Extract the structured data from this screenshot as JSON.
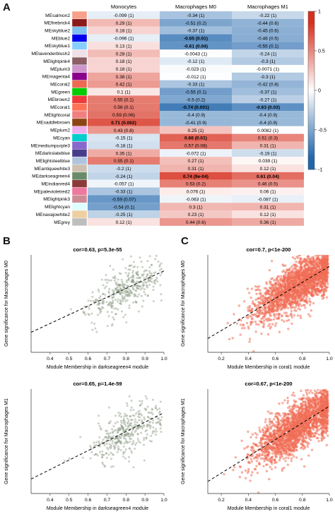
{
  "panels": {
    "a": "A",
    "b": "B",
    "c": "C"
  },
  "heatmap": {
    "type": "heatmap",
    "columns": [
      "Monocytes",
      "Macrophages M0",
      "Macrophages M1"
    ],
    "rows": [
      {
        "module": "MEsalmon2",
        "swatch": "#f7a08a",
        "cells": [
          {
            "r": -0.099,
            "label": "-0.099 (1)",
            "bold": false
          },
          {
            "r": -0.34,
            "label": "-0.34 (1)",
            "bold": false
          },
          {
            "r": -0.22,
            "label": "-0.22 (1)",
            "bold": false
          }
        ]
      },
      {
        "module": "MEfirebrick4",
        "swatch": "#8b1a1a",
        "cells": [
          {
            "r": 0.29,
            "label": "0.29 (1)",
            "bold": false
          },
          {
            "r": -0.51,
            "label": "-0.51 (0.2)",
            "bold": false
          },
          {
            "r": -0.44,
            "label": "-0.44 (0.6)",
            "bold": false
          }
        ]
      },
      {
        "module": "MEskyblue2",
        "swatch": "#7ec0ee",
        "cells": [
          {
            "r": 0.18,
            "label": "0.18 (1)",
            "bold": false
          },
          {
            "r": -0.37,
            "label": "-0.37 (1)",
            "bold": false
          },
          {
            "r": -0.45,
            "label": "-0.45 (0.6)",
            "bold": false
          }
        ]
      },
      {
        "module": "MEblue2",
        "swatch": "#0000ee",
        "cells": [
          {
            "r": -0.096,
            "label": "-0.096 (1)",
            "bold": false
          },
          {
            "r": -0.65,
            "label": "-0.65 (0.01)",
            "bold": true
          },
          {
            "r": -0.46,
            "label": "-0.46 (0.5)",
            "bold": false
          }
        ]
      },
      {
        "module": "MEskyblue1",
        "swatch": "#87ceff",
        "cells": [
          {
            "r": 0.13,
            "label": "0.13 (1)",
            "bold": false
          },
          {
            "r": -0.61,
            "label": "-0.61 (0.04)",
            "bold": true
          },
          {
            "r": -0.55,
            "label": "-0.55 (0.1)",
            "bold": false
          }
        ]
      },
      {
        "module": "MElavenderblush2",
        "swatch": "#eee0e5",
        "cells": [
          {
            "r": 0.28,
            "label": "0.28 (1)",
            "bold": false
          },
          {
            "r": -0.0043,
            "label": "-0.0043 (1)",
            "bold": false
          },
          {
            "r": -0.24,
            "label": "-0.24 (1)",
            "bold": false
          }
        ]
      },
      {
        "module": "MElightpink4",
        "swatch": "#8b5f65",
        "cells": [
          {
            "r": 0.18,
            "label": "0.18 (1)",
            "bold": false
          },
          {
            "r": -0.12,
            "label": "-0.12 (1)",
            "bold": false
          },
          {
            "r": -0.3,
            "label": "-0.3 (1)",
            "bold": false
          }
        ]
      },
      {
        "module": "MEplum3",
        "swatch": "#cd96cd",
        "cells": [
          {
            "r": 0.18,
            "label": "0.18 (1)",
            "bold": false
          },
          {
            "r": -0.023,
            "label": "-0.023 (1)",
            "bold": false
          },
          {
            "r": -0.0071,
            "label": "-0.0071 (1)",
            "bold": false
          }
        ]
      },
      {
        "module": "MEmagenta4",
        "swatch": "#8b008b",
        "cells": [
          {
            "r": 0.38,
            "label": "0.38 (1)",
            "bold": false
          },
          {
            "r": -0.012,
            "label": "-0.012 (1)",
            "bold": false
          },
          {
            "r": -0.3,
            "label": "-0.3 (1)",
            "bold": false
          }
        ]
      },
      {
        "module": "MEcoral2",
        "swatch": "#ee6a50",
        "cells": [
          {
            "r": 0.42,
            "label": "0.42 (1)",
            "bold": false
          },
          {
            "r": -0.33,
            "label": "-0.33 (1)",
            "bold": false
          },
          {
            "r": -0.42,
            "label": "-0.42 (0.8)",
            "bold": false
          }
        ]
      },
      {
        "module": "MEgreen",
        "swatch": "#00cd00",
        "cells": [
          {
            "r": 0.1,
            "label": "0.1 (1)",
            "bold": false
          },
          {
            "r": -0.55,
            "label": "-0.55 (0.1)",
            "bold": false
          },
          {
            "r": -0.37,
            "label": "-0.37 (1)",
            "bold": false
          }
        ]
      },
      {
        "module": "MEbrown2",
        "swatch": "#ee3b3b",
        "cells": [
          {
            "r": 0.55,
            "label": "0.55 (0.1)",
            "bold": false
          },
          {
            "r": -0.5,
            "label": "-0.5 (0.2)",
            "bold": false
          },
          {
            "r": -0.27,
            "label": "-0.27 (1)",
            "bold": false
          }
        ]
      },
      {
        "module": "MEcoral1",
        "swatch": "#ff7256",
        "cells": [
          {
            "r": 0.56,
            "label": "0.56 (0.1)",
            "bold": false
          },
          {
            "r": -0.74,
            "label": "-0.74 (0.001)",
            "bold": true
          },
          {
            "r": -0.63,
            "label": "-0.63 (0.03)",
            "bold": true
          }
        ]
      },
      {
        "module": "MElightcoral",
        "swatch": "#f08080",
        "cells": [
          {
            "r": 0.59,
            "label": "0.59 (0.06)",
            "bold": false
          },
          {
            "r": -0.4,
            "label": "-0.4 (0.9)",
            "bold": false
          },
          {
            "r": -0.4,
            "label": "-0.4 (0.9)",
            "bold": false
          }
        ]
      },
      {
        "module": "MEsaddlebrown",
        "swatch": "#8b4513",
        "cells": [
          {
            "r": 0.71,
            "label": "0.71 (0.002)",
            "bold": true
          },
          {
            "r": -0.41,
            "label": "-0.41 (0.9)",
            "bold": false
          },
          {
            "r": -0.4,
            "label": "-0.4 (0.9)",
            "bold": false
          }
        ]
      },
      {
        "module": "MEplum2",
        "swatch": "#eeaeee",
        "cells": [
          {
            "r": 0.43,
            "label": "0.43 (0.8)",
            "bold": false
          },
          {
            "r": 0.25,
            "label": "0.25 (1)",
            "bold": false
          },
          {
            "r": 0.0082,
            "label": "0.0082 (1)",
            "bold": false
          }
        ]
      },
      {
        "module": "MEcyan",
        "swatch": "#00cdcd",
        "cells": [
          {
            "r": -0.15,
            "label": "-0.15 (1)",
            "bold": false
          },
          {
            "r": 0.66,
            "label": "0.66 (0.01)",
            "bold": true
          },
          {
            "r": 0.51,
            "label": "0.51 (0.3)",
            "bold": false
          }
        ]
      },
      {
        "module": "MEmediumpurple3",
        "swatch": "#8968cd",
        "cells": [
          {
            "r": -0.18,
            "label": "-0.18 (1)",
            "bold": false
          },
          {
            "r": 0.57,
            "label": "0.57 (0.08)",
            "bold": false
          },
          {
            "r": 0.31,
            "label": "0.31 (1)",
            "bold": false
          }
        ]
      },
      {
        "module": "MEdarkslateblue",
        "swatch": "#483d8b",
        "cells": [
          {
            "r": 0.35,
            "label": "0.35 (1)",
            "bold": false
          },
          {
            "r": -0.072,
            "label": "-0.072 (1)",
            "bold": false
          },
          {
            "r": -0.19,
            "label": "-0.19 (1)",
            "bold": false
          }
        ]
      },
      {
        "module": "MElightsteelblue",
        "swatch": "#b0c4de",
        "cells": [
          {
            "r": 0.55,
            "label": "0.55 (0.1)",
            "bold": false
          },
          {
            "r": 0.27,
            "label": "0.27 (1)",
            "bold": false
          },
          {
            "r": 0.039,
            "label": "0.039 (1)",
            "bold": false
          }
        ]
      },
      {
        "module": "MEantiquewhite3",
        "swatch": "#cdc0b0",
        "cells": [
          {
            "r": -0.2,
            "label": "-0.2 (1)",
            "bold": false
          },
          {
            "r": 0.31,
            "label": "0.31 (1)",
            "bold": false
          },
          {
            "r": 0.12,
            "label": "0.12 (1)",
            "bold": false
          }
        ]
      },
      {
        "module": "MEdarkseagreen4",
        "swatch": "#698b69",
        "cells": [
          {
            "r": -0.24,
            "label": "-0.24 (1)",
            "bold": false
          },
          {
            "r": 0.74,
            "label": "0.74 (9e-04)",
            "bold": true
          },
          {
            "r": 0.61,
            "label": "0.61 (0.04)",
            "bold": true
          }
        ]
      },
      {
        "module": "MEindianred4",
        "swatch": "#8b3a3a",
        "cells": [
          {
            "r": -0.057,
            "label": "-0.057 (1)",
            "bold": false
          },
          {
            "r": 0.53,
            "label": "0.53 (0.2)",
            "bold": false
          },
          {
            "r": 0.46,
            "label": "0.46 (0.5)",
            "bold": false
          }
        ]
      },
      {
        "module": "MEpalevioletred2",
        "swatch": "#ee799f",
        "cells": [
          {
            "r": -0.33,
            "label": "-0.33 (1)",
            "bold": false
          },
          {
            "r": 0.076,
            "label": "0.076 (1)",
            "bold": false
          },
          {
            "r": 0.06,
            "label": "0.06 (1)",
            "bold": false
          }
        ]
      },
      {
        "module": "MElightpink3",
        "swatch": "#cd8c95",
        "cells": [
          {
            "r": -0.59,
            "label": "-0.59 (0.07)",
            "bold": false
          },
          {
            "r": -0.063,
            "label": "-0.063 (1)",
            "bold": false
          },
          {
            "r": -0.087,
            "label": "-0.087 (1)",
            "bold": false
          }
        ]
      },
      {
        "module": "MElightcyan",
        "swatch": "#e0ffff",
        "cells": [
          {
            "r": -0.54,
            "label": "-0.54 (0.1)",
            "bold": false
          },
          {
            "r": 0.3,
            "label": "0.3 (1)",
            "bold": false
          },
          {
            "r": 0.31,
            "label": "0.31 (1)",
            "bold": false
          }
        ]
      },
      {
        "module": "MEnavajowhite2",
        "swatch": "#eecfa1",
        "cells": [
          {
            "r": -0.25,
            "label": "-0.25 (1)",
            "bold": false
          },
          {
            "r": 0.23,
            "label": "0.23 (1)",
            "bold": false
          },
          {
            "r": 0.12,
            "label": "0.12 (1)",
            "bold": false
          }
        ]
      },
      {
        "module": "MEgrey",
        "swatch": "#bebebe",
        "cells": [
          {
            "r": 0.12,
            "label": "0.12 (1)",
            "bold": false
          },
          {
            "r": 0.44,
            "label": "0.44 (0.6)",
            "bold": false
          },
          {
            "r": 0.36,
            "label": "0.36 (1)",
            "bold": false
          }
        ]
      }
    ],
    "colorbar": {
      "ticks": [
        {
          "v": 1,
          "label": "1"
        },
        {
          "v": 0.5,
          "label": "0.5"
        },
        {
          "v": 0,
          "label": "0"
        },
        {
          "v": -0.5,
          "label": "-0.5"
        },
        {
          "v": -1,
          "label": "-1"
        }
      ],
      "high_color": "#d7301f",
      "mid_color": "#ffffff",
      "low_color": "#2166ac"
    }
  },
  "chart_data": [
    {
      "type": "scatter",
      "title": "cor=0.63, p=5.3e-55",
      "xlabel": "Module Membership in darkseagreen4 module",
      "ylabel": "Gene significance for Macrophages M0",
      "xlim": [
        0.3,
        1.0
      ],
      "ylim": [
        0.18,
        0.88
      ],
      "xticks": [
        "0.4",
        "0.5",
        "0.6",
        "0.7",
        "0.8",
        "0.9",
        "1.0"
      ],
      "fit": {
        "slope": 0.63,
        "intercept": 0.135
      },
      "point_color": "#8a9a80",
      "n": 380,
      "x_center": 0.8,
      "x_spread": 0.1,
      "noise": 0.08
    },
    {
      "type": "scatter",
      "title": "cor=0.65, p=1.4e-59",
      "xlabel": "Module Membership in darkseagreen4 module",
      "ylabel": "Gene significance for Macrophages M1",
      "xlim": [
        0.3,
        1.0
      ],
      "ylim": [
        0.1,
        0.85
      ],
      "xticks": [
        "0.4",
        "0.5",
        "0.6",
        "0.7",
        "0.8",
        "0.9",
        "1.0"
      ],
      "fit": {
        "slope": 0.68,
        "intercept": 0.0
      },
      "point_color": "#8a9a80",
      "n": 380,
      "x_center": 0.8,
      "x_spread": 0.1,
      "noise": 0.08
    },
    {
      "type": "scatter",
      "title": "cor=0.7, p<1e-200",
      "xlabel": "Module Membership in coral1 module",
      "ylabel": "Gene significance for Macrophages M0",
      "xlim": [
        0.1,
        1.0
      ],
      "ylim": [
        0.0,
        0.85
      ],
      "xticks": [
        "0.2",
        "0.4",
        "0.6",
        "0.8",
        "1.0"
      ],
      "fit": {
        "slope": 0.7,
        "intercept": 0.05
      },
      "point_color": "#f06d55",
      "n": 2200,
      "x_center": 0.78,
      "x_spread": 0.17,
      "noise": 0.1
    },
    {
      "type": "scatter",
      "title": "cor=0.67, p<1e-200",
      "xlabel": "Module Membership in coral1 module",
      "ylabel": "Gene significance for Macrophages M1",
      "xlim": [
        0.1,
        1.0
      ],
      "ylim": [
        0.0,
        0.85
      ],
      "xticks": [
        "0.2",
        "0.4",
        "0.6",
        "0.8",
        "1.0"
      ],
      "fit": {
        "slope": 0.68,
        "intercept": 0.03
      },
      "point_color": "#f06d55",
      "n": 2200,
      "x_center": 0.78,
      "x_spread": 0.17,
      "noise": 0.1
    }
  ]
}
